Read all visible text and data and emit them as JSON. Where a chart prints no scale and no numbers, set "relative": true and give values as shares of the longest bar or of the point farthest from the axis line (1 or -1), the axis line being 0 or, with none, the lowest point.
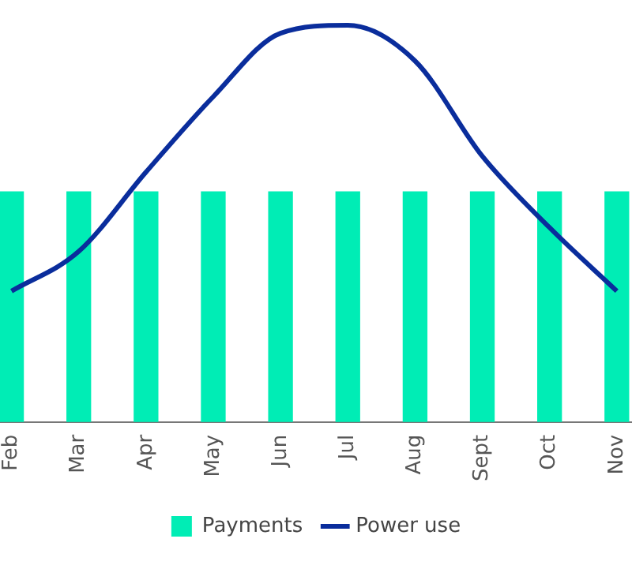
{
  "chart_data": {
    "type": "bar",
    "relative": true,
    "categories": [
      "Feb",
      "Mar",
      "Apr",
      "May",
      "Jun",
      "Jul",
      "Aug",
      "Sept",
      "Oct",
      "Nov"
    ],
    "series": [
      {
        "name": "Payments",
        "color": "#00edb5",
        "values": [
          0.58,
          0.58,
          0.58,
          0.58,
          0.58,
          0.58,
          0.58,
          0.58,
          0.58,
          0.58
        ]
      },
      {
        "name": "Power use",
        "type": "line",
        "color": "#0a2d9c",
        "values": [
          0.33,
          0.43,
          0.63,
          0.82,
          0.98,
          1,
          0.91,
          0.67,
          0.49,
          0.33
        ]
      }
    ],
    "legend": "bottom",
    "grid": false,
    "marker": "none",
    "line_style": "solid"
  }
}
